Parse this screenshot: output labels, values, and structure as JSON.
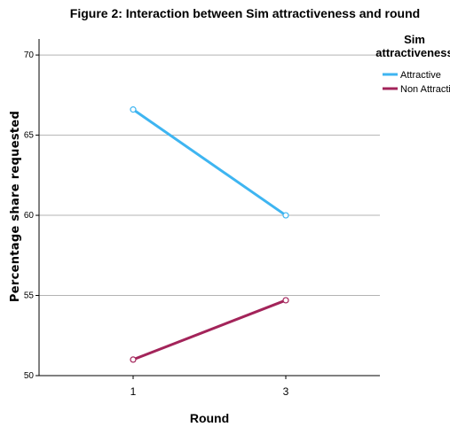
{
  "chart_data": {
    "type": "line",
    "title": "Figure 2: Interaction between Sim attractiveness and round",
    "xlabel": "Round",
    "ylabel": "Percentage share requested",
    "categories": [
      "1",
      "3"
    ],
    "ylim": [
      50,
      71
    ],
    "yticks": [
      "50",
      "55",
      "60",
      "65",
      "70"
    ],
    "grid": true,
    "legend": {
      "title": "Sim attractiveness",
      "placement": "right"
    },
    "series": [
      {
        "name": "Attractive",
        "values": [
          66.6,
          60.0
        ],
        "color": "#3eb5f1"
      },
      {
        "name": "Non Attractive",
        "values": [
          51.0,
          54.7
        ],
        "color": "#a3245a"
      }
    ]
  }
}
